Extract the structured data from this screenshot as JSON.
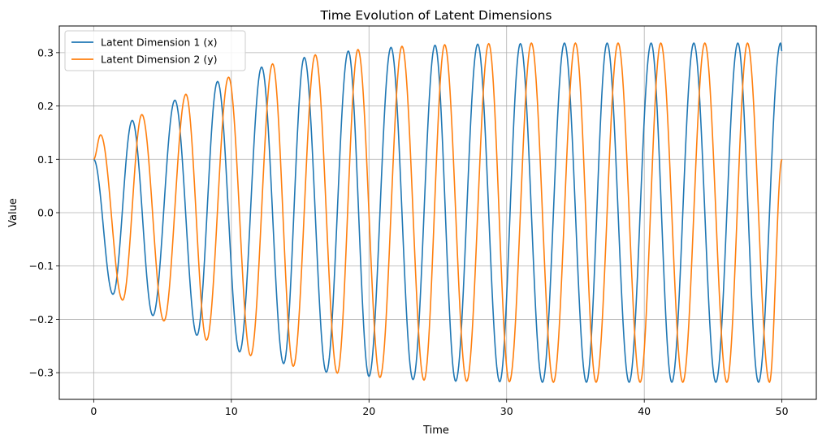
{
  "chart_data": {
    "type": "line",
    "title": "Time Evolution of Latent Dimensions",
    "xlabel": "Time",
    "ylabel": "Value",
    "xlim": [
      -2.5,
      52.5
    ],
    "ylim": [
      -0.35,
      0.35
    ],
    "xticks": [
      0,
      10,
      20,
      30,
      40,
      50
    ],
    "xtick_labels": [
      "0",
      "10",
      "20",
      "30",
      "40",
      "50"
    ],
    "yticks": [
      -0.3,
      -0.2,
      -0.1,
      0.0,
      0.1,
      0.2,
      0.3
    ],
    "ytick_labels": [
      "−0.3",
      "−0.2",
      "−0.1",
      "0.0",
      "0.1",
      "0.2",
      "0.3"
    ],
    "grid": true,
    "legend_position": "top-left",
    "series": [
      {
        "name": "Latent Dimension 1 (x)",
        "color": "#1f77b4",
        "x": [
          0,
          1.4,
          2.8,
          4.3,
          5.9,
          7.5,
          9.0,
          10.6,
          12.2,
          13.8,
          15.3,
          16.9,
          18.5,
          20.0,
          21.6,
          23.2,
          24.8,
          26.3,
          27.9,
          29.5,
          31.0,
          32.6,
          34.2,
          35.8,
          37.3,
          38.9,
          40.5,
          42.0,
          43.6,
          45.2,
          46.8,
          48.3,
          49.9,
          50.0
        ],
        "y": [
          0.1,
          -0.153,
          0.173,
          -0.193,
          0.211,
          -0.23,
          0.246,
          -0.261,
          0.273,
          -0.283,
          0.291,
          -0.299,
          0.303,
          -0.307,
          0.31,
          -0.313,
          0.314,
          -0.316,
          0.316,
          -0.317,
          0.317,
          -0.318,
          0.318,
          -0.318,
          0.318,
          -0.318,
          0.318,
          -0.318,
          0.318,
          -0.318,
          0.318,
          -0.318,
          0.318,
          0.303
        ]
      },
      {
        "name": "Latent Dimension 2 (y)",
        "color": "#ff7f0e",
        "x": [
          0,
          0.5,
          2.1,
          3.5,
          5.1,
          6.7,
          8.2,
          9.8,
          11.4,
          13.0,
          14.5,
          16.1,
          17.7,
          19.2,
          20.8,
          22.4,
          24.0,
          25.5,
          27.1,
          28.7,
          30.2,
          31.8,
          33.4,
          35.0,
          36.5,
          38.1,
          39.7,
          41.2,
          42.8,
          44.4,
          46.0,
          47.5,
          49.1,
          50.0
        ],
        "y": [
          0.1,
          0.146,
          -0.164,
          0.184,
          -0.203,
          0.222,
          -0.239,
          0.254,
          -0.268,
          0.279,
          -0.288,
          0.296,
          -0.301,
          0.306,
          -0.309,
          0.312,
          -0.314,
          0.315,
          -0.316,
          0.317,
          -0.317,
          0.318,
          -0.318,
          0.318,
          -0.318,
          0.318,
          -0.318,
          0.318,
          -0.318,
          0.318,
          -0.318,
          0.318,
          -0.318,
          0.1
        ]
      }
    ]
  }
}
